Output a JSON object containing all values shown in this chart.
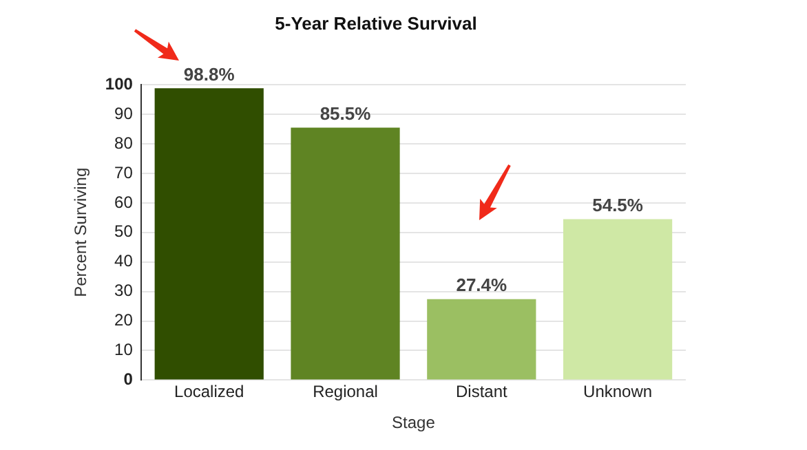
{
  "chart_data": {
    "type": "bar",
    "title": "5-Year Relative Survival",
    "xlabel": "Stage",
    "ylabel": "Percent Surviving",
    "categories": [
      "Localized",
      "Regional",
      "Distant",
      "Unknown"
    ],
    "values": [
      98.8,
      85.5,
      27.4,
      54.5
    ],
    "colors": [
      "#304e00",
      "#5f8423",
      "#9bbf62",
      "#cfe8a5"
    ],
    "value_labels": [
      "98.8%",
      "85.5%",
      "27.4%",
      "54.5%"
    ],
    "ylim": [
      0,
      100
    ],
    "yticks": [
      0,
      10,
      20,
      30,
      40,
      50,
      60,
      70,
      80,
      90,
      100
    ],
    "grid": "y",
    "legend": false
  }
}
